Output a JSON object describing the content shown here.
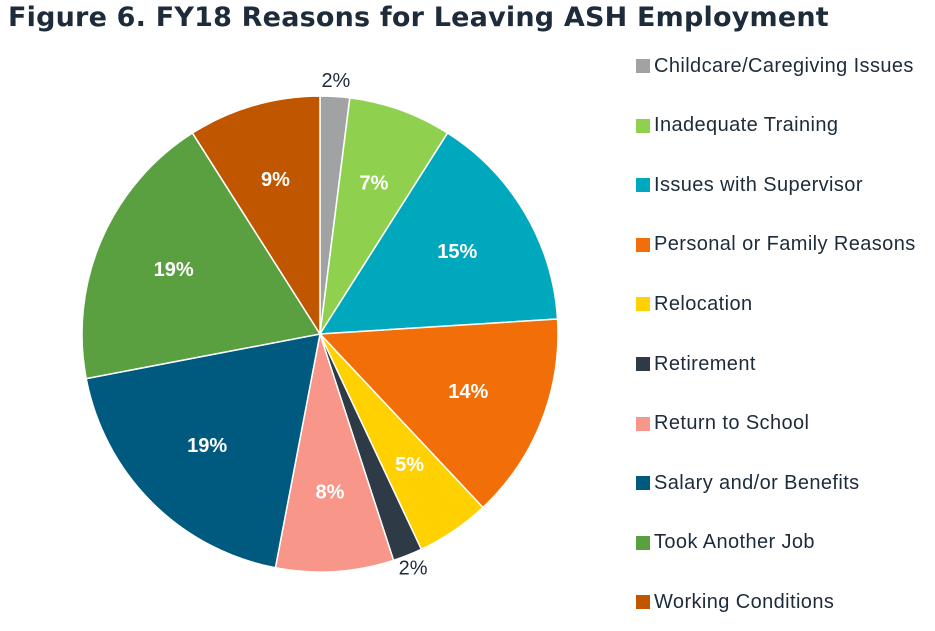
{
  "chart_data": {
    "type": "pie",
    "title": "Figure 6. FY18 Reasons for Leaving ASH Employment",
    "legend_position": "right",
    "slices": [
      {
        "label": "Childcare/Caregiving Issues",
        "value": 2,
        "display": "2%",
        "color": "#a0a2a4",
        "label_color": "#1d2b3a"
      },
      {
        "label": "Inadequate Training",
        "value": 7,
        "display": "7%",
        "color": "#8fd14f",
        "label_color": "#ffffff"
      },
      {
        "label": "Issues with Supervisor",
        "value": 15,
        "display": "15%",
        "color": "#00a8bd",
        "label_color": "#ffffff"
      },
      {
        "label": "Personal or Family Reasons",
        "value": 14,
        "display": "14%",
        "color": "#f26e09",
        "label_color": "#ffffff"
      },
      {
        "label": "Relocation",
        "value": 5,
        "display": "5%",
        "color": "#ffd100",
        "label_color": "#ffffff"
      },
      {
        "label": "Retirement",
        "value": 2,
        "display": "2%",
        "color": "#2e3a45",
        "label_color": "#1d2b3a"
      },
      {
        "label": "Return to School",
        "value": 8,
        "display": "8%",
        "color": "#f8968a",
        "label_color": "#ffffff"
      },
      {
        "label": "Salary and/or Benefits",
        "value": 19,
        "display": "19%",
        "color": "#005a80",
        "label_color": "#ffffff"
      },
      {
        "label": "Took Another Job",
        "value": 19,
        "display": "19%",
        "color": "#5aa040",
        "label_color": "#ffffff"
      },
      {
        "label": "Working Conditions",
        "value": 9,
        "display": "9%",
        "color": "#c05600",
        "label_color": "#ffffff"
      }
    ]
  }
}
